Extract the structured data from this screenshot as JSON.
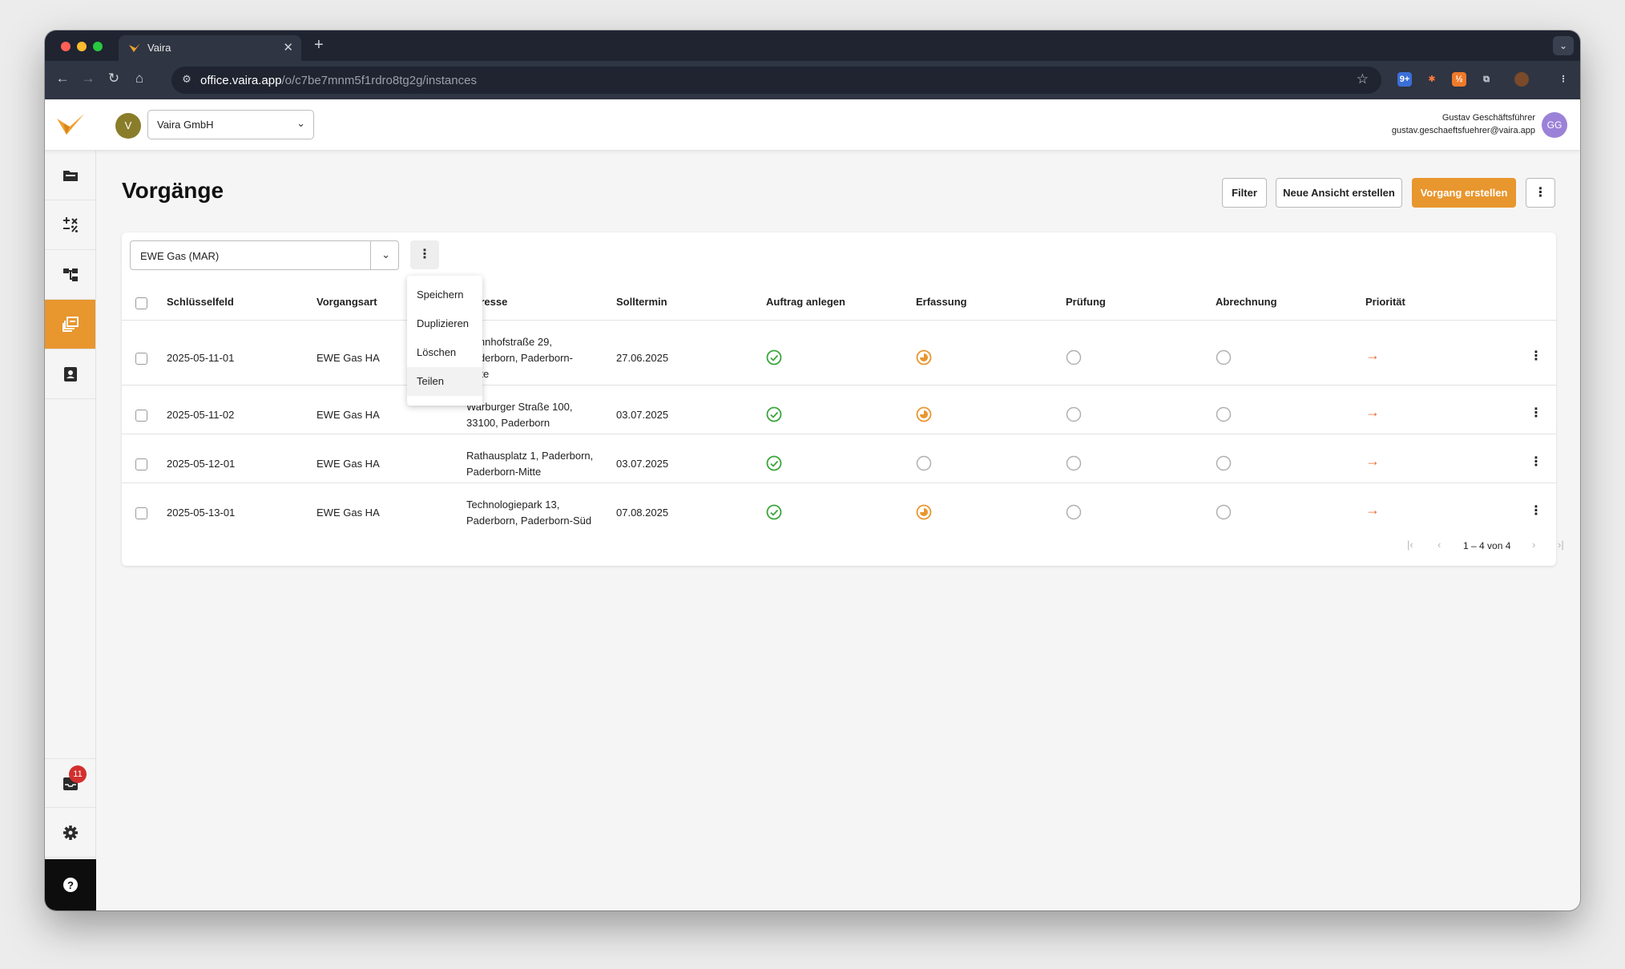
{
  "browser": {
    "tab_title": "Vaira",
    "url_host": "office.vaira.app",
    "url_path": "/o/c7be7mnm5f1rdro8tg2g/instances"
  },
  "header": {
    "org_avatar": "V",
    "org_name": "Vaira GmbH",
    "user_name": "Gustav Geschäftsführer",
    "user_email": "gustav.geschaeftsfuehrer@vaira.app",
    "user_initials": "GG"
  },
  "sidebar": {
    "inbox_badge": "11"
  },
  "page": {
    "title": "Vorgänge",
    "filter_label": "Filter",
    "new_view_label": "Neue Ansicht erstellen",
    "create_label": "Vorgang erstellen"
  },
  "view": {
    "selected": "EWE Gas (MAR)"
  },
  "menu": {
    "items": [
      "Speichern",
      "Duplizieren",
      "Löschen",
      "Teilen"
    ]
  },
  "table": {
    "columns": [
      "Schlüsselfeld",
      "Vorgangsart",
      "Adresse",
      "Solltermin",
      "Auftrag anlegen",
      "Erfassung",
      "Prüfung",
      "Abrechnung",
      "Priorität"
    ],
    "rows": [
      {
        "key": "2025-05-11-01",
        "type": "EWE Gas HA",
        "address_1": "Bahnhofstraße 29,",
        "address_2": "Paderborn, Paderborn-",
        "address_3": "Mitte",
        "date": "27.06.2025",
        "auftrag": "done",
        "erfassung": "in-progress",
        "pruefung": "open",
        "abrechnung": "open",
        "prio": "→"
      },
      {
        "key": "2025-05-11-02",
        "type": "EWE Gas HA",
        "address_1": "Warburger Straße 100,",
        "address_2": "33100, Paderborn",
        "date": "03.07.2025",
        "auftrag": "done",
        "erfassung": "in-progress",
        "pruefung": "open",
        "abrechnung": "open",
        "prio": "→"
      },
      {
        "key": "2025-05-12-01",
        "type": "EWE Gas HA",
        "address_1": "Rathausplatz 1, Paderborn,",
        "address_2": "Paderborn-Mitte",
        "date": "03.07.2025",
        "auftrag": "done",
        "erfassung": "open",
        "pruefung": "open",
        "abrechnung": "open",
        "prio": "→"
      },
      {
        "key": "2025-05-13-01",
        "type": "EWE Gas HA",
        "address_1": "Technologiepark 13,",
        "address_2": "Paderborn, Paderborn-Süd",
        "date": "07.08.2025",
        "auftrag": "done",
        "erfassung": "in-progress",
        "pruefung": "open",
        "abrechnung": "open",
        "prio": "→"
      }
    ]
  },
  "pagination": {
    "label": "1 – 4 von 4"
  },
  "colors": {
    "accent": "#e8962e",
    "done": "#3aa53a",
    "progress": "#e8962e",
    "open": "#b0b0b0",
    "priority": "#e86a2e"
  }
}
